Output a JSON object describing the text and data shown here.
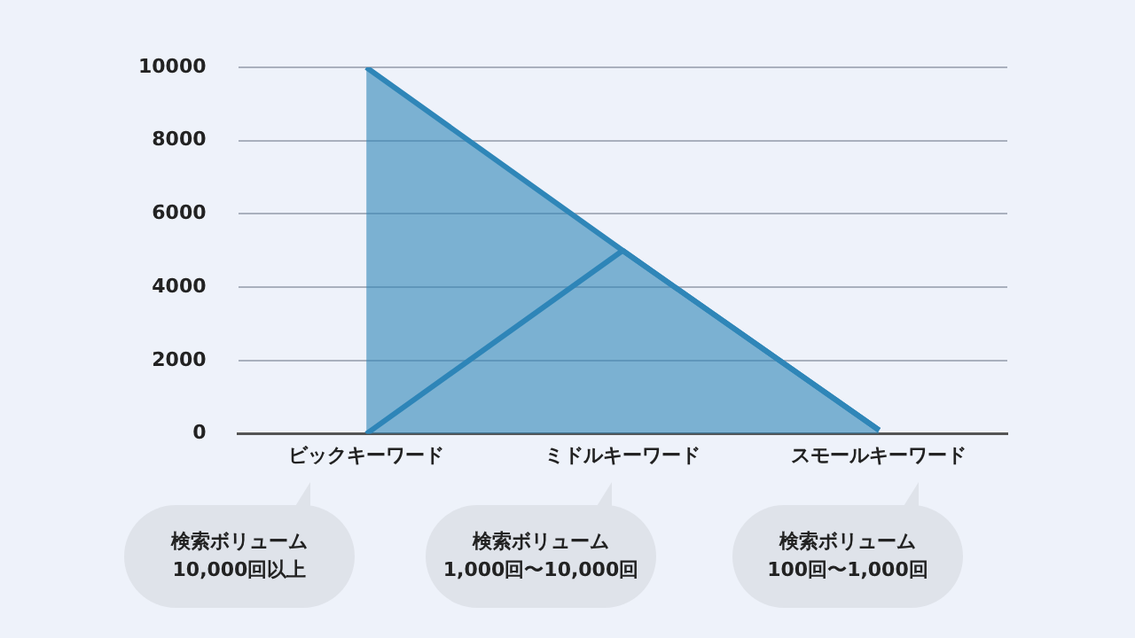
{
  "chart_data": {
    "type": "area",
    "categories": [
      "ビックキーワード",
      "ミドルキーワード",
      "スモールキーワード"
    ],
    "series": [
      {
        "color": "#2f86b8",
        "values": [
          10000,
          5000,
          100
        ]
      },
      {
        "type": "line",
        "color": "#2f86b8",
        "values": [
          0,
          5000,
          100
        ]
      }
    ],
    "ylim": [
      0,
      10000
    ],
    "yticks": [
      0,
      2000,
      4000,
      6000,
      8000,
      10000
    ],
    "grid": "y",
    "legend": false,
    "marker": "none",
    "annotations": [
      "検索ボリューム\n10,000回以上",
      "検索ボリューム\n1,000回〜10,000回",
      "検索ボリューム\n100回〜1,000回"
    ]
  }
}
